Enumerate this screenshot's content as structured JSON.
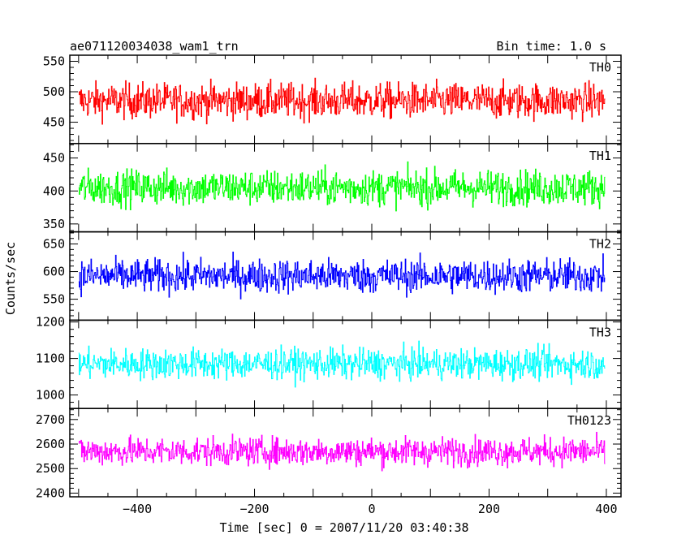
{
  "header": {
    "title": "ae071120034038_wam1_trn",
    "bin_time": "Bin time: 1.0 s"
  },
  "chart_data": {
    "type": "line",
    "xlabel": "Time [sec] 0 = 2007/11/20 03:40:38",
    "ylabel": "Counts/sec",
    "xlim": [
      -515,
      425
    ],
    "x_ticks": [
      -400,
      -200,
      0,
      200,
      400
    ],
    "x_tick_labels": [
      "−400",
      "−200",
      "0",
      "200",
      "400"
    ],
    "x_range": [
      -500,
      397
    ],
    "x_step": 1.0,
    "panels": [
      {
        "name": "TH0",
        "color": "#ff0000",
        "mean": 485,
        "amp": 38,
        "ylim": [
          415,
          560
        ],
        "ticks": [
          450,
          500,
          550
        ],
        "tick_labels": [
          "450",
          "500",
          "550"
        ]
      },
      {
        "name": "TH1",
        "color": "#00ff00",
        "mean": 405,
        "amp": 35,
        "ylim": [
          338,
          472
        ],
        "ticks": [
          350,
          400,
          450
        ],
        "tick_labels": [
          "350",
          "400",
          "450"
        ]
      },
      {
        "name": "TH2",
        "color": "#0000ff",
        "mean": 592,
        "amp": 40,
        "ylim": [
          512,
          672
        ],
        "ticks": [
          550,
          600,
          650
        ],
        "tick_labels": [
          "550",
          "600",
          "650"
        ]
      },
      {
        "name": "TH3",
        "color": "#00ffff",
        "mean": 1085,
        "amp": 55,
        "ylim": [
          963,
          1205
        ],
        "ticks": [
          1000,
          1100,
          1200
        ],
        "tick_labels": [
          "1000",
          "1100",
          "1200"
        ]
      },
      {
        "name": "TH0123",
        "color": "#ff00ff",
        "mean": 2570,
        "amp": 75,
        "ylim": [
          2385,
          2745
        ],
        "ticks": [
          2400,
          2500,
          2600,
          2700
        ],
        "tick_labels": [
          "2400",
          "2500",
          "2600",
          "2700"
        ]
      }
    ]
  }
}
